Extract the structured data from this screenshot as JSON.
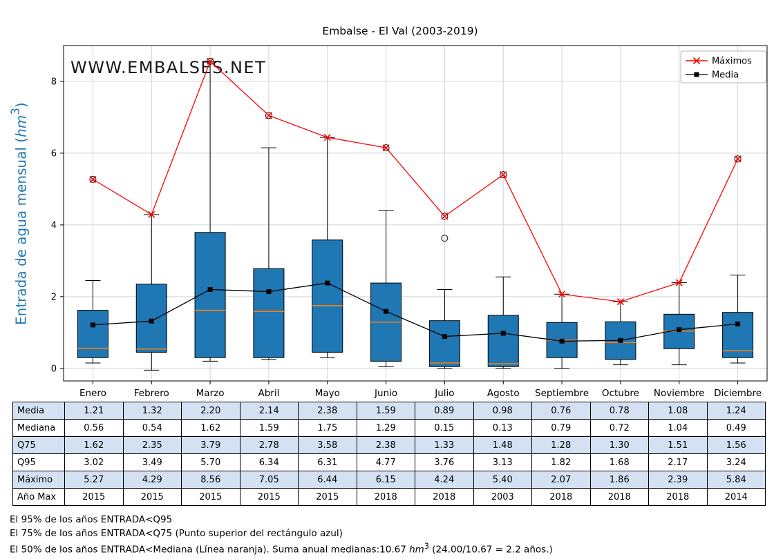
{
  "title": "Embalse - El Val (2003-2019)",
  "watermark": "WWW.EMBALSES.NET",
  "ylabel": {
    "prefix": "Entrada de agua mensual (",
    "unit": "hm",
    "sup": "3",
    "suffix": ")"
  },
  "legend": {
    "maximos": "Máximos",
    "media": "Media"
  },
  "chart_data": {
    "type": "boxplot-with-lines",
    "title": "Embalse - El Val (2003-2019)",
    "categories": [
      "Enero",
      "Febrero",
      "Marzo",
      "Abril",
      "Mayo",
      "Junio",
      "Julio",
      "Agosto",
      "Septiembre",
      "Octubre",
      "Noviembre",
      "Diciembre"
    ],
    "ylabel": "Entrada de agua mensual (hm³)",
    "ylim": [
      -0.35,
      9.0
    ],
    "yticks": [
      0,
      2,
      4,
      6,
      8
    ],
    "grid": true,
    "legend_position": "top-right",
    "series": [
      {
        "name": "Máximos",
        "marker": "x",
        "color": "#ff0000",
        "values": [
          5.27,
          4.29,
          8.56,
          7.05,
          6.44,
          6.15,
          4.24,
          5.4,
          2.07,
          1.86,
          2.39,
          5.84
        ]
      },
      {
        "name": "Media",
        "marker": "square",
        "color": "#000000",
        "values": [
          1.21,
          1.32,
          2.2,
          2.14,
          2.38,
          1.59,
          0.89,
          0.98,
          0.76,
          0.78,
          1.08,
          1.24
        ]
      }
    ],
    "boxes": [
      {
        "month": "Enero",
        "whislo": 0.15,
        "q1": 0.3,
        "med": 0.56,
        "q3": 1.62,
        "whishi": 2.45,
        "fliers": [
          5.27
        ]
      },
      {
        "month": "Febrero",
        "whislo": -0.05,
        "q1": 0.45,
        "med": 0.54,
        "q3": 2.35,
        "whishi": 4.29,
        "fliers": []
      },
      {
        "month": "Marzo",
        "whislo": 0.2,
        "q1": 0.3,
        "med": 1.62,
        "q3": 3.79,
        "whishi": 8.56,
        "fliers": [
          8.56
        ]
      },
      {
        "month": "Abril",
        "whislo": 0.25,
        "q1": 0.3,
        "med": 1.59,
        "q3": 2.78,
        "whishi": 6.15,
        "fliers": [
          7.05
        ]
      },
      {
        "month": "Mayo",
        "whislo": 0.3,
        "q1": 0.45,
        "med": 1.75,
        "q3": 3.58,
        "whishi": 6.44,
        "fliers": []
      },
      {
        "month": "Junio",
        "whislo": 0.05,
        "q1": 0.2,
        "med": 1.29,
        "q3": 2.38,
        "whishi": 4.4,
        "fliers": [
          6.15
        ]
      },
      {
        "month": "Julio",
        "whislo": 0.0,
        "q1": 0.05,
        "med": 0.15,
        "q3": 1.33,
        "whishi": 2.2,
        "fliers": [
          3.63,
          4.24
        ]
      },
      {
        "month": "Agosto",
        "whislo": 0.0,
        "q1": 0.05,
        "med": 0.13,
        "q3": 1.48,
        "whishi": 2.55,
        "fliers": [
          5.4
        ]
      },
      {
        "month": "Septiembre",
        "whislo": 0.0,
        "q1": 0.3,
        "med": 0.79,
        "q3": 1.28,
        "whishi": 2.07,
        "fliers": []
      },
      {
        "month": "Octubre",
        "whislo": 0.1,
        "q1": 0.25,
        "med": 0.72,
        "q3": 1.3,
        "whishi": 1.86,
        "fliers": []
      },
      {
        "month": "Noviembre",
        "whislo": 0.1,
        "q1": 0.55,
        "med": 1.04,
        "q3": 1.51,
        "whishi": 2.39,
        "fliers": []
      },
      {
        "month": "Diciembre",
        "whislo": 0.15,
        "q1": 0.3,
        "med": 0.49,
        "q3": 1.56,
        "whishi": 2.6,
        "fliers": [
          5.84
        ]
      }
    ],
    "colors": {
      "box_fill": "#1f77b4",
      "box_edge": "#000000",
      "median": "#ff7f0e",
      "max_line": "#ff0000",
      "mean_line": "#000000",
      "grid": "#d4d4d4",
      "watermark": "#8db6d5"
    }
  },
  "table": {
    "rows": [
      {
        "label": "Media",
        "values": [
          "1.21",
          "1.32",
          "2.20",
          "2.14",
          "2.38",
          "1.59",
          "0.89",
          "0.98",
          "0.76",
          "0.78",
          "1.08",
          "1.24"
        ]
      },
      {
        "label": "Mediana",
        "values": [
          "0.56",
          "0.54",
          "1.62",
          "1.59",
          "1.75",
          "1.29",
          "0.15",
          "0.13",
          "0.79",
          "0.72",
          "1.04",
          "0.49"
        ]
      },
      {
        "label": "Q75",
        "values": [
          "1.62",
          "2.35",
          "3.79",
          "2.78",
          "3.58",
          "2.38",
          "1.33",
          "1.48",
          "1.28",
          "1.30",
          "1.51",
          "1.56"
        ]
      },
      {
        "label": "Q95",
        "values": [
          "3.02",
          "3.49",
          "5.70",
          "6.34",
          "6.31",
          "4.77",
          "3.76",
          "3.13",
          "1.82",
          "1.68",
          "2.17",
          "3.24"
        ]
      },
      {
        "label": "Máximo",
        "values": [
          "5.27",
          "4.29",
          "8.56",
          "7.05",
          "6.44",
          "6.15",
          "4.24",
          "5.40",
          "2.07",
          "1.86",
          "2.39",
          "5.84"
        ]
      },
      {
        "label": "Año Max",
        "values": [
          "2015",
          "2015",
          "2015",
          "2015",
          "2015",
          "2018",
          "2018",
          "2003",
          "2018",
          "2018",
          "2018",
          "2014"
        ]
      }
    ]
  },
  "footer": {
    "line1": "El 95% de los años ENTRADA<Q95",
    "line2": "El 75% de los años ENTRADA<Q75 (Punto superior del rectángulo azul)",
    "line3_prefix": "El 50% de los años ENTRADA<Mediana (Línea naranja). Suma anual medianas:10.67 ",
    "line3_unit": "hm",
    "line3_sup": "3",
    "line3_suffix": " (24.00/10.67 = 2.2 años.)"
  }
}
